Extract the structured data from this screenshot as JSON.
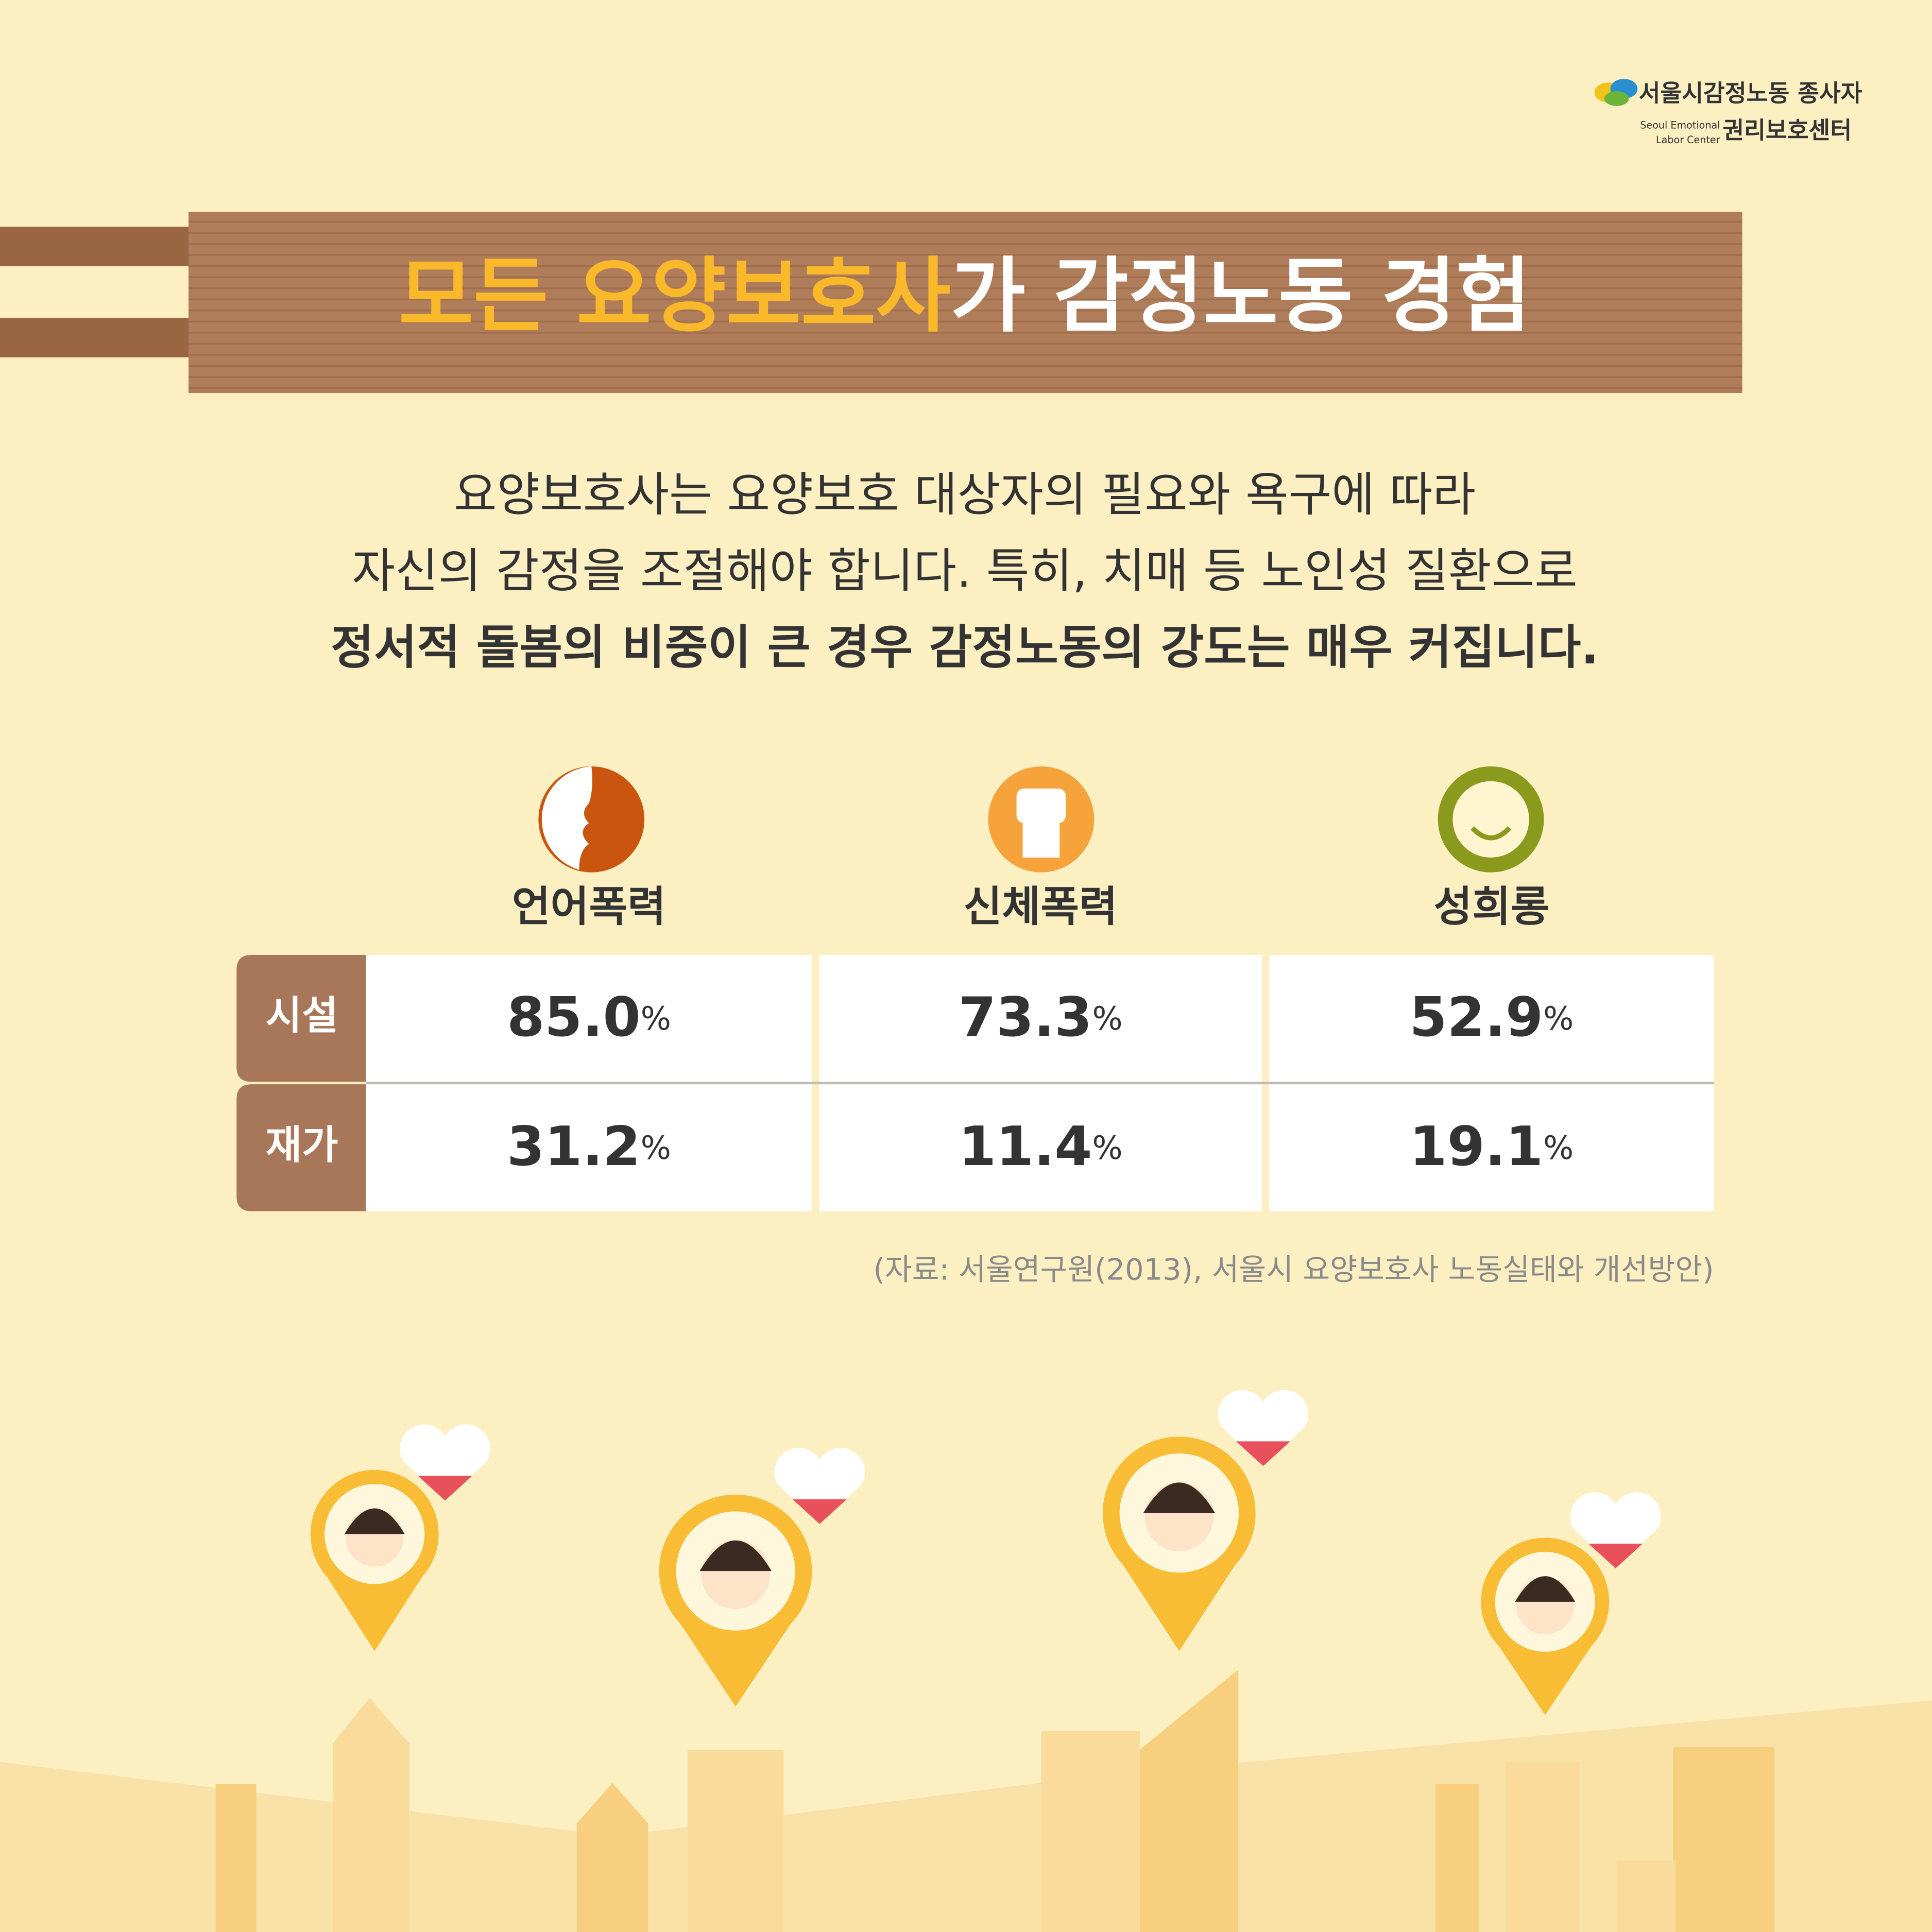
{
  "logo": {
    "line1": "서울시감정노동 종사자",
    "line2": "권리보호센터",
    "en1": "Seoul Emotional",
    "en2": "Labor Center"
  },
  "header": {
    "title_highlight": "모든 요양보호사",
    "title_rest": "가 감정노동 경험"
  },
  "body": {
    "lines": [
      "요양보호사는 요양보호 대상자의 필요와 욕구에 따라",
      "자신의 감정을 조절해야 합니다. 특히, 치매 등 노인성 질환으로",
      "정서적 돌봄의 비중이 큰 경우 감정노동의 강도는 매우 커집니다."
    ]
  },
  "table": {
    "columns": [
      "언어폭력",
      "신체폭력",
      "성희롱"
    ],
    "rows": [
      {
        "label": "시설",
        "cells": [
          {
            "number": "85.0",
            "unit": "%"
          },
          {
            "number": "73.3",
            "unit": "%"
          },
          {
            "number": "52.9",
            "unit": "%"
          }
        ]
      },
      {
        "label": "재가",
        "cells": [
          {
            "number": "31.2",
            "unit": "%"
          },
          {
            "number": "11.4",
            "unit": "%"
          },
          {
            "number": "19.1",
            "unit": "%"
          }
        ]
      }
    ]
  },
  "source": "(자료: 서울연구원(2013), 서울시 요양보호사 노동실태와 개선방안)"
}
